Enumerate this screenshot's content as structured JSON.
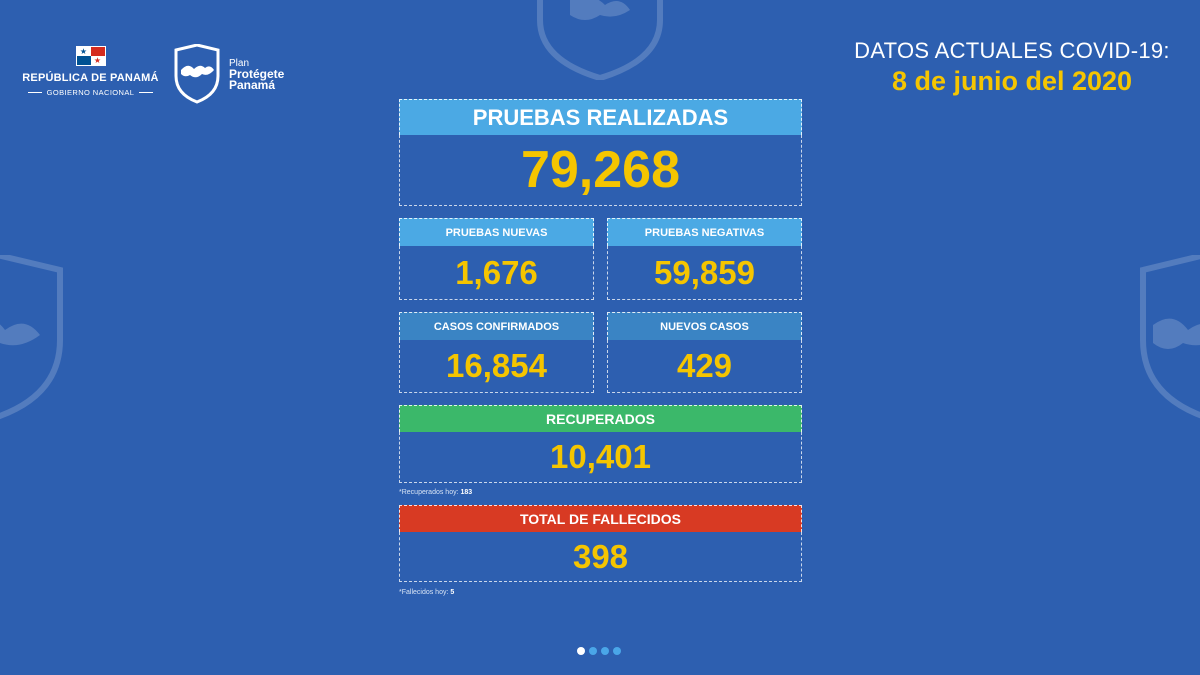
{
  "header": {
    "gov_title": "REPÚBLICA DE PANAMÁ",
    "gov_subtitle": "GOBIERNO NACIONAL",
    "plan_line1": "Plan",
    "plan_line2": "Protégete",
    "plan_line3": "Panamá",
    "title": "DATOS ACTUALES COVID-19:",
    "date": "8 de junio del 2020"
  },
  "stats": {
    "pruebas_realizadas": {
      "label": "PRUEBAS REALIZADAS",
      "value": "79,268"
    },
    "pruebas_nuevas": {
      "label": "PRUEBAS NUEVAS",
      "value": "1,676"
    },
    "pruebas_negativas": {
      "label": "PRUEBAS NEGATIVAS",
      "value": "59,859"
    },
    "casos_confirmados": {
      "label": "CASOS CONFIRMADOS",
      "value": "16,854"
    },
    "nuevos_casos": {
      "label": "NUEVOS CASOS",
      "value": "429"
    },
    "recuperados": {
      "label": "RECUPERADOS",
      "value": "10,401"
    },
    "fallecidos": {
      "label": "TOTAL DE FALLECIDOS",
      "value": "398"
    }
  },
  "notes": {
    "recuperados_label": "*Recuperados hoy:",
    "recuperados_value": "183",
    "fallecidos_label": "*Fallecidos hoy:",
    "fallecidos_value": "5"
  },
  "colors": {
    "background": "#2d5fb0",
    "accent_yellow": "#f5c500",
    "label_light_blue": "#4ba9e4",
    "label_mid_blue": "#3a84c4",
    "label_green": "#3bb86a",
    "label_red": "#d83a23"
  },
  "pagination": {
    "total": 4,
    "active": 1
  }
}
